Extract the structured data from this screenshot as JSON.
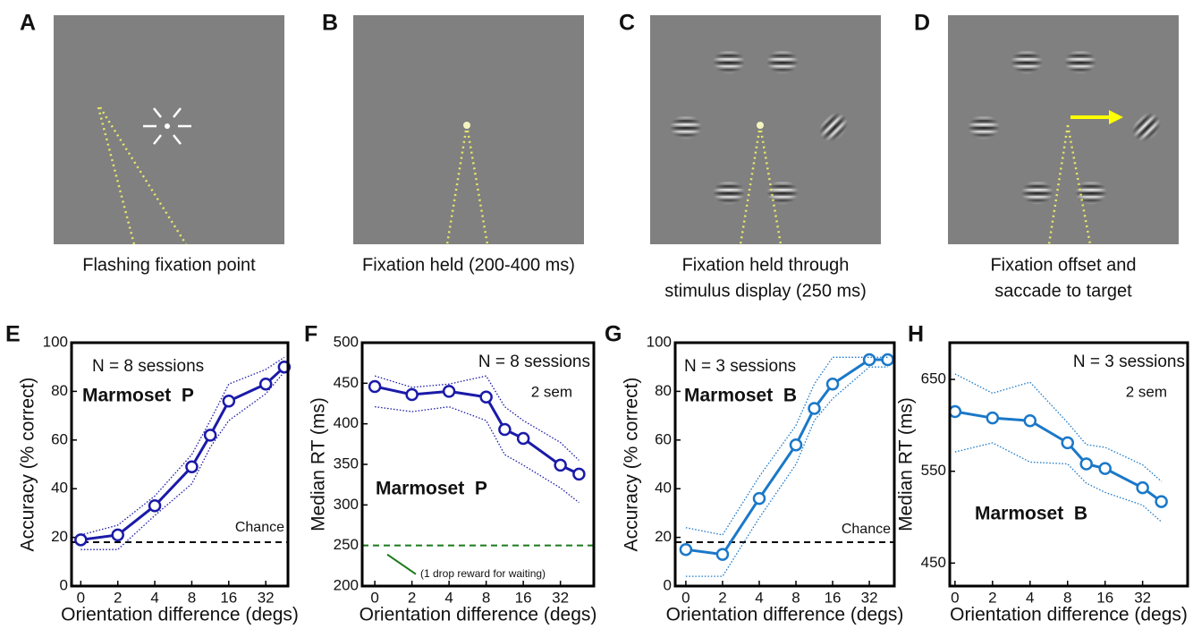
{
  "stimulus_panels": [
    {
      "label": "A",
      "caption": [
        "Flashing fixation point"
      ]
    },
    {
      "label": "B",
      "caption": [
        "Fixation held (200-400 ms)"
      ]
    },
    {
      "label": "C",
      "caption": [
        "Fixation held through",
        "stimulus display (250 ms)"
      ]
    },
    {
      "label": "D",
      "caption": [
        "Fixation offset and",
        "saccade to target"
      ]
    }
  ],
  "chart_data": [
    {
      "type": "line",
      "panel_label": "E",
      "x_label": "Orientation difference (degs)",
      "y_label": "Accuracy (% correct)",
      "note": "N = 8 sessions",
      "subject": "Marmoset  P",
      "reference_line": {
        "value": 18,
        "label": "Chance",
        "color": "#000000"
      },
      "x": [
        0,
        1,
        2,
        3,
        3.5,
        4,
        5,
        5.5
      ],
      "xlim": [
        -0.25,
        5.6
      ],
      "xticks": [
        {
          "value": 0,
          "label": "0"
        },
        {
          "value": 1,
          "label": "2"
        },
        {
          "value": 2,
          "label": "4"
        },
        {
          "value": 3,
          "label": "8"
        },
        {
          "value": 4,
          "label": "16"
        },
        {
          "value": 5,
          "label": "32"
        }
      ],
      "ylim": [
        0,
        100
      ],
      "yticks": [
        0,
        20,
        40,
        60,
        80,
        100
      ],
      "series": [
        {
          "color": "#1a1aa8",
          "style": "solid",
          "markers": true,
          "values": [
            19,
            21,
            33,
            49,
            62,
            76,
            83,
            90
          ]
        },
        {
          "color": "#1a1aa8",
          "style": "dotted",
          "markers": false,
          "values": [
            21,
            25,
            37,
            54,
            68,
            83,
            89,
            94
          ]
        },
        {
          "color": "#1a1aa8",
          "style": "dotted",
          "markers": false,
          "values": [
            15,
            15,
            29,
            42,
            57,
            68,
            79,
            88
          ]
        }
      ]
    },
    {
      "type": "line",
      "panel_label": "F",
      "x_label": "Orientation difference (degs)",
      "y_label": "Median RT (ms)",
      "note": "N = 8 sessions",
      "sem": "2 sem",
      "subject": "Marmoset  P",
      "reference_line": {
        "value": 250,
        "label": "(1 drop reward for waiting)",
        "color": "#1a7a1a"
      },
      "x": [
        0,
        1,
        2,
        3,
        3.5,
        4,
        5,
        5.5
      ],
      "xlim": [
        -0.34,
        5.9
      ],
      "xticks": [
        {
          "value": 0,
          "label": "0"
        },
        {
          "value": 1,
          "label": "2"
        },
        {
          "value": 2,
          "label": "4"
        },
        {
          "value": 3,
          "label": "8"
        },
        {
          "value": 4,
          "label": "16"
        },
        {
          "value": 5,
          "label": "32"
        }
      ],
      "ylim": [
        200,
        500
      ],
      "yticks": [
        200,
        250,
        300,
        350,
        400,
        450,
        500
      ],
      "series": [
        {
          "color": "#1a1aa8",
          "style": "solid",
          "markers": true,
          "values": [
            446,
            436,
            440,
            433,
            393,
            382,
            349,
            338
          ]
        },
        {
          "color": "#1a1aa8",
          "style": "dotted",
          "markers": false,
          "values": [
            459,
            445,
            449,
            459,
            421,
            404,
            377,
            355
          ]
        },
        {
          "color": "#1a1aa8",
          "style": "dotted",
          "markers": false,
          "values": [
            421,
            415,
            421,
            404,
            362,
            349,
            321,
            303
          ]
        }
      ]
    },
    {
      "type": "line",
      "panel_label": "G",
      "x_label": "Orientation difference (degs)",
      "y_label": "Accuracy (% correct)",
      "note": "N = 3 sessions",
      "subject": "Marmoset  B",
      "reference_line": {
        "value": 18,
        "label": "Chance",
        "color": "#000000"
      },
      "x": [
        0,
        1,
        2,
        3,
        3.5,
        4,
        5,
        5.5
      ],
      "xlim": [
        -0.29,
        5.68
      ],
      "xticks": [
        {
          "value": 0,
          "label": "0"
        },
        {
          "value": 1,
          "label": "2"
        },
        {
          "value": 2,
          "label": "4"
        },
        {
          "value": 3,
          "label": "8"
        },
        {
          "value": 4,
          "label": "16"
        },
        {
          "value": 5,
          "label": "32"
        }
      ],
      "ylim": [
        0,
        100
      ],
      "yticks": [
        0,
        20,
        40,
        60,
        80,
        100
      ],
      "series": [
        {
          "color": "#1a78c8",
          "style": "solid",
          "markers": true,
          "values": [
            15,
            13,
            36,
            58,
            73,
            83,
            93,
            93
          ]
        },
        {
          "color": "#1a78c8",
          "style": "dotted",
          "markers": false,
          "values": [
            24,
            21,
            45,
            66,
            83,
            94,
            94,
            94
          ]
        },
        {
          "color": "#1a78c8",
          "style": "dotted",
          "markers": false,
          "values": [
            4,
            4,
            28,
            50,
            68,
            77,
            90,
            90
          ]
        }
      ]
    },
    {
      "type": "line",
      "panel_label": "H",
      "x_label": "Orientation difference (degs)",
      "y_label": "Median RT (ms)",
      "note": "N = 3 sessions",
      "sem": "2 sem",
      "subject": "Marmoset  B",
      "x": [
        0,
        1,
        2,
        3,
        3.5,
        4,
        5,
        5.5
      ],
      "xlim": [
        -0.14,
        6.2
      ],
      "xticks": [
        {
          "value": 0,
          "label": "0"
        },
        {
          "value": 1,
          "label": "2"
        },
        {
          "value": 2,
          "label": "4"
        },
        {
          "value": 3,
          "label": "8"
        },
        {
          "value": 4,
          "label": "16"
        },
        {
          "value": 5,
          "label": "32"
        }
      ],
      "ylim": [
        425,
        690
      ],
      "yticks": [
        450,
        550,
        650
      ],
      "series": [
        {
          "color": "#1a78c8",
          "style": "solid",
          "markers": true,
          "values": [
            615,
            608,
            605,
            581,
            558,
            553,
            532,
            517
          ]
        },
        {
          "color": "#1a78c8",
          "style": "dotted",
          "markers": false,
          "values": [
            656,
            635,
            647,
            603,
            579,
            576,
            557,
            539
          ]
        },
        {
          "color": "#1a78c8",
          "style": "dotted",
          "markers": false,
          "values": [
            571,
            581,
            560,
            558,
            537,
            527,
            513,
            495
          ]
        }
      ]
    }
  ]
}
